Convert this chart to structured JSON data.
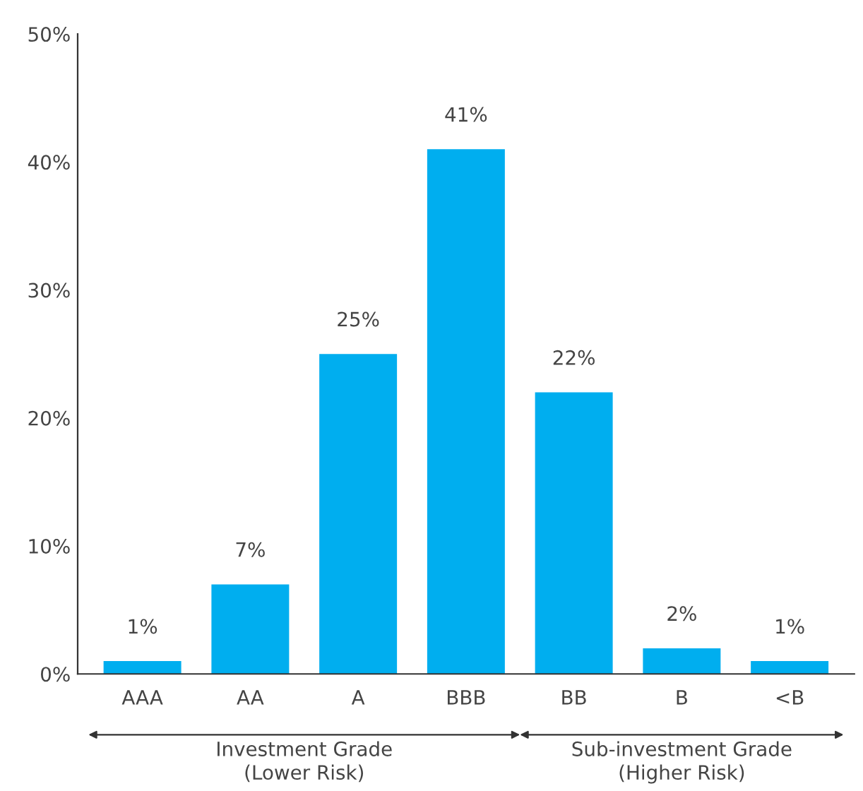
{
  "chart_data": {
    "type": "bar",
    "categories": [
      "AAA",
      "AA",
      "A",
      "BBB",
      "BB",
      "B",
      "<B"
    ],
    "values": [
      1,
      7,
      25,
      41,
      22,
      2,
      1
    ],
    "value_labels": [
      "1%",
      "7%",
      "25%",
      "41%",
      "22%",
      "2%",
      "1%"
    ],
    "color": "#00aeef",
    "ylim": [
      0,
      50
    ],
    "yticks": [
      {
        "value": 0,
        "label": "0%"
      },
      {
        "value": 10,
        "label": "10%"
      },
      {
        "value": 20,
        "label": "20%"
      },
      {
        "value": 30,
        "label": "30%"
      },
      {
        "value": 40,
        "label": "40%"
      },
      {
        "value": 50,
        "label": "50%"
      }
    ],
    "grid": false,
    "annotations": [
      "Investment Grade\n(Lower Risk)",
      "Sub-investment Grade\n(Higher Risk)"
    ]
  }
}
